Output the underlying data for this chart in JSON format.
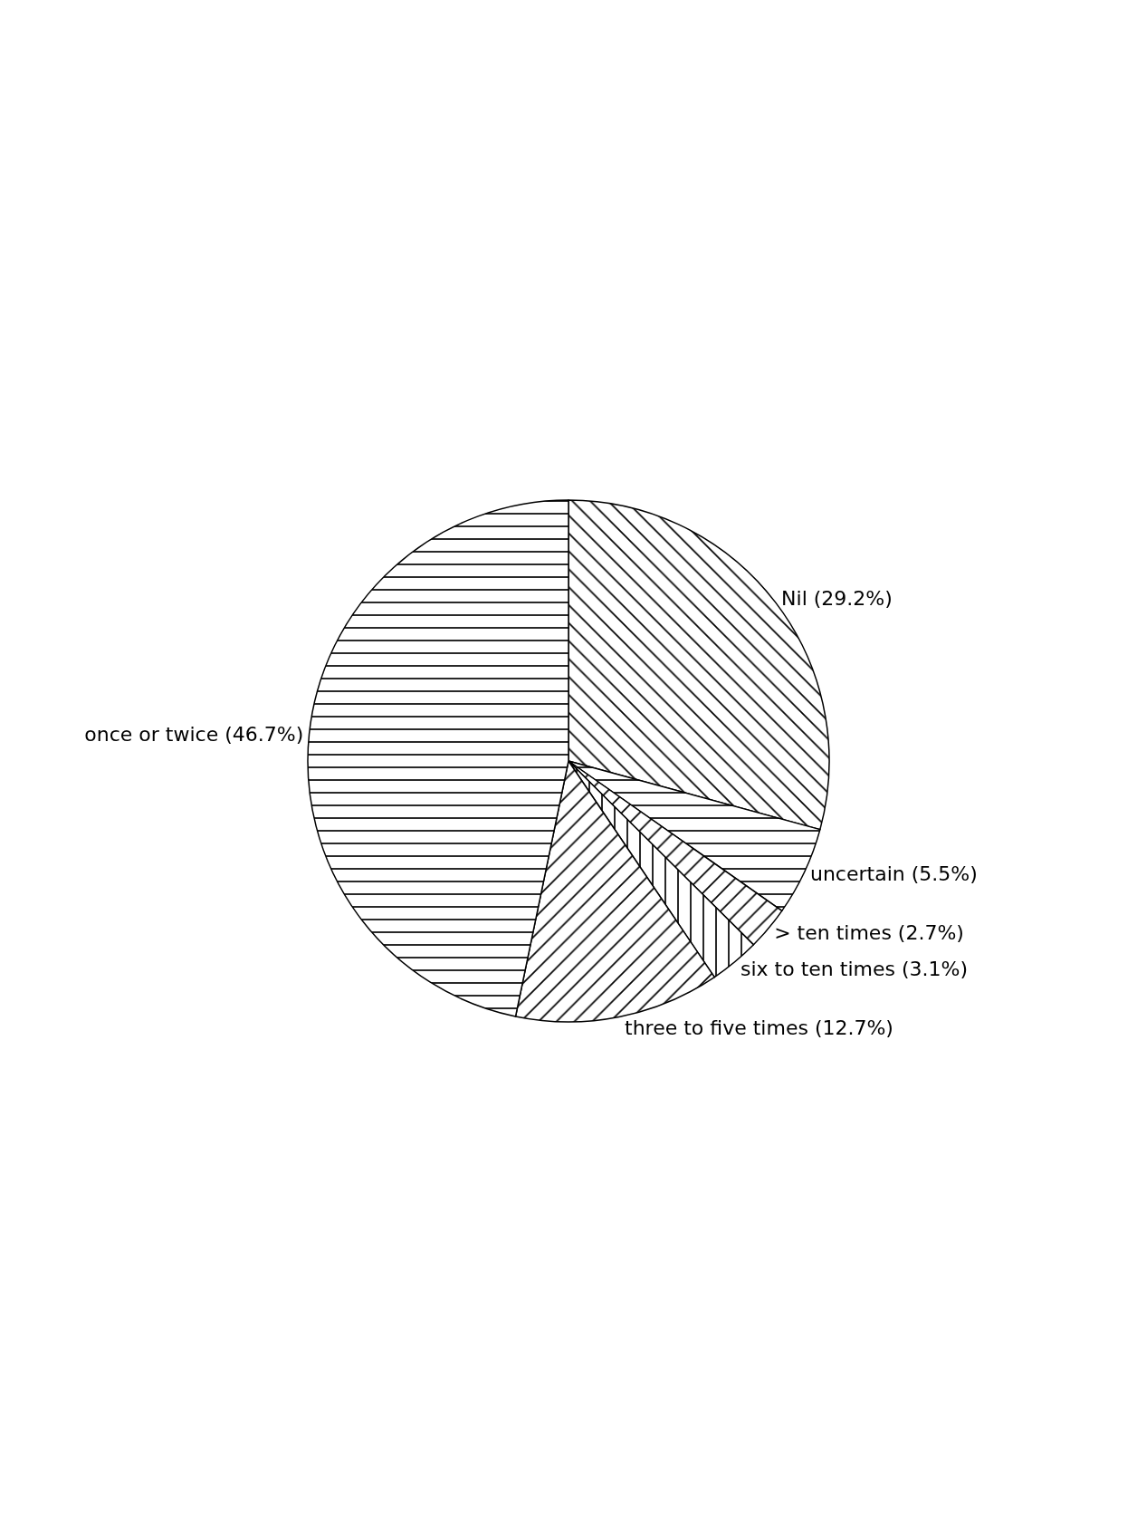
{
  "chart_data": {
    "type": "pie",
    "categories": [
      "Nil",
      "uncertain",
      "> ten times",
      "six to ten times",
      "three to five times",
      "once or twice"
    ],
    "values": [
      29.2,
      5.5,
      2.7,
      3.1,
      12.7,
      46.7
    ],
    "value_labels": [
      "(29.2%)",
      "(5.5%)",
      "(2.7%)",
      "(3.1%)",
      "(12.7%)",
      "(46.7%)"
    ],
    "colors": [
      "#000000",
      "#000000",
      "#000000",
      "#000000",
      "#000000",
      "#000000"
    ],
    "legend": false
  }
}
